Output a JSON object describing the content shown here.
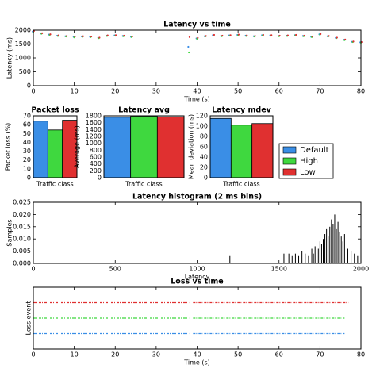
{
  "chart_data": [
    {
      "type": "scatter",
      "title": "Latency vs time",
      "xlabel": "Time (s)",
      "ylabel": "Latency (ms)",
      "xlim": [
        0,
        80
      ],
      "xticks": [
        0,
        10,
        20,
        30,
        40,
        50,
        60,
        70,
        80
      ],
      "ylim": [
        0,
        2000
      ],
      "yticks": [
        0,
        500,
        1000,
        1500,
        2000
      ],
      "x": [
        0,
        2,
        4,
        6,
        8,
        10,
        12,
        14,
        16,
        18,
        20,
        22,
        24,
        38,
        40,
        42,
        44,
        46,
        48,
        50,
        52,
        54,
        56,
        58,
        60,
        62,
        64,
        66,
        68,
        70,
        72,
        74,
        76,
        78,
        80
      ],
      "series": [
        {
          "color": "#3a8ee6",
          "values": [
            1950,
            1880,
            1840,
            1800,
            1780,
            1760,
            1770,
            1760,
            1720,
            1800,
            1810,
            1790,
            1760,
            1400,
            1700,
            1780,
            1820,
            1790,
            1810,
            1830,
            1800,
            1780,
            1820,
            1810,
            1790,
            1800,
            1820,
            1790,
            1760,
            1850,
            1780,
            1720,
            1650,
            1580,
            1560
          ]
        },
        {
          "color": "#3fd83f",
          "values": [
            1930,
            1870,
            1830,
            1790,
            1770,
            1740,
            1760,
            1750,
            1710,
            1790,
            1800,
            1780,
            1750,
            1200,
            1690,
            1770,
            1810,
            1780,
            1800,
            1820,
            1790,
            1770,
            1810,
            1800,
            1780,
            1790,
            1810,
            1780,
            1750,
            1840,
            1770,
            1710,
            1640,
            1570,
            1550
          ]
        },
        {
          "color": "#e03030",
          "values": [
            1970,
            1890,
            1850,
            1810,
            1790,
            1770,
            1780,
            1770,
            1730,
            1810,
            1820,
            1800,
            1770,
            1750,
            1720,
            1790,
            1830,
            1800,
            1820,
            1840,
            1810,
            1790,
            1830,
            1820,
            1800,
            1810,
            1830,
            1800,
            1770,
            1860,
            1790,
            1730,
            1660,
            1590,
            1570
          ]
        }
      ]
    },
    {
      "type": "bar",
      "title": "Packet loss",
      "xlabel": "Traffic class",
      "ylabel": "Packet loss (%)",
      "ylim": [
        0,
        70
      ],
      "yticks": [
        0,
        10,
        20,
        30,
        40,
        50,
        60,
        70
      ],
      "values": [
        64,
        54,
        65
      ]
    },
    {
      "type": "bar",
      "title": "Latency avg",
      "xlabel": "Traffic class",
      "ylabel": "Average (ms)",
      "ylim": [
        0,
        1800
      ],
      "yticks": [
        0,
        200,
        400,
        600,
        800,
        1000,
        1200,
        1400,
        1600,
        1800
      ],
      "values": [
        1760,
        1790,
        1770
      ]
    },
    {
      "type": "bar",
      "title": "Latency mdev",
      "xlabel": "Traffic class",
      "ylabel": "Mean deviation (ms)",
      "ylim": [
        0,
        120
      ],
      "yticks": [
        0,
        20,
        40,
        60,
        80,
        100,
        120
      ],
      "values": [
        115,
        102,
        105
      ]
    },
    {
      "type": "stem",
      "title": "Latency histogram (2 ms bins)",
      "xlabel": "Latency",
      "ylabel": "Samples",
      "xlim": [
        0,
        2000
      ],
      "xticks": [
        0,
        500,
        1000,
        1500,
        2000
      ],
      "ylim": [
        0,
        0.025
      ],
      "yticks": [
        {
          "value": 0,
          "label": "0.000"
        },
        {
          "value": 0.005,
          "label": "0.005"
        },
        {
          "value": 0.01,
          "label": "0.010"
        },
        {
          "value": 0.015,
          "label": "0.015"
        },
        {
          "value": 0.02,
          "label": "0.020"
        },
        {
          "value": 0.025,
          "label": "0.025"
        }
      ],
      "color": "#000000",
      "x": [
        1200,
        1530,
        1560,
        1580,
        1600,
        1620,
        1640,
        1660,
        1680,
        1700,
        1710,
        1720,
        1740,
        1750,
        1760,
        1770,
        1780,
        1790,
        1800,
        1810,
        1820,
        1830,
        1840,
        1850,
        1860,
        1870,
        1880,
        1890,
        1900,
        1920,
        1940,
        1960,
        1980,
        2000
      ],
      "values": [
        0.003,
        0.004,
        0.004,
        0.003,
        0.004,
        0.003,
        0.005,
        0.004,
        0.003,
        0.006,
        0.004,
        0.007,
        0.006,
        0.009,
        0.008,
        0.01,
        0.012,
        0.014,
        0.011,
        0.015,
        0.018,
        0.016,
        0.02,
        0.014,
        0.017,
        0.013,
        0.011,
        0.009,
        0.012,
        0.006,
        0.005,
        0.004,
        0.003,
        0.003
      ]
    },
    {
      "type": "events",
      "title": "Loss vs time",
      "xlabel": "Time (s)",
      "ylabel": "Loss event",
      "xlim": [
        0,
        80
      ],
      "xticks": [
        0,
        10,
        20,
        30,
        40,
        50,
        60,
        70,
        80
      ],
      "series": [
        {
          "color": "#e03030",
          "segments": [
            [
              0,
              38
            ],
            [
              39,
              77
            ]
          ]
        },
        {
          "color": "#3fd83f",
          "segments": [
            [
              0,
              38
            ],
            [
              39,
              76
            ]
          ]
        },
        {
          "color": "#3a8ee6",
          "segments": [
            [
              0,
              38
            ],
            [
              39,
              76
            ]
          ]
        }
      ]
    }
  ],
  "legend": {
    "labels": [
      "Default",
      "High",
      "Low"
    ],
    "colors": [
      "#3a8ee6",
      "#3fd83f",
      "#e03030"
    ]
  }
}
